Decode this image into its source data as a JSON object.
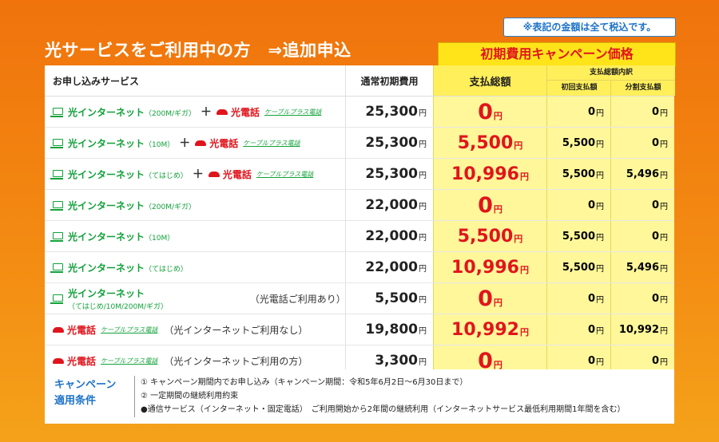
{
  "tax_note": "※表記の金額は全て税込です。",
  "title": "光サービスをご利用中の方　⇒追加申込",
  "campaign_banner": "初期費用キャンペーン価格",
  "headers": {
    "service": "お申し込みサービス",
    "standard": "通常初期費用",
    "total": "支払総額",
    "breakdown": "支払総額内訳",
    "first": "初回支払額",
    "installment": "分割支払額"
  },
  "yen": "円",
  "rows": [
    {
      "net": "光インターネット",
      "net_spec": "（200M/ギガ）",
      "plus": "＋",
      "tel": "光電話",
      "cable": "ケーブルプラス電話",
      "note": "",
      "standard": "25,300",
      "total": "0",
      "first": "0",
      "installment": "0"
    },
    {
      "net": "光インターネット",
      "net_spec": "（10M）",
      "plus": "＋",
      "tel": "光電話",
      "cable": "ケーブルプラス電話",
      "note": "",
      "standard": "25,300",
      "total": "5,500",
      "first": "5,500",
      "installment": "0"
    },
    {
      "net": "光インターネット",
      "net_spec": "（てはじめ）",
      "plus": "＋",
      "tel": "光電話",
      "cable": "ケーブルプラス電話",
      "note": "",
      "standard": "25,300",
      "total": "10,996",
      "first": "5,500",
      "installment": "5,496"
    },
    {
      "net": "光インターネット",
      "net_spec": "（200M/ギガ）",
      "plus": "",
      "tel": "",
      "cable": "",
      "note": "",
      "standard": "22,000",
      "total": "0",
      "first": "0",
      "installment": "0"
    },
    {
      "net": "光インターネット",
      "net_spec": "（10M）",
      "plus": "",
      "tel": "",
      "cable": "",
      "note": "",
      "standard": "22,000",
      "total": "5,500",
      "first": "5,500",
      "installment": "0"
    },
    {
      "net": "光インターネット",
      "net_spec": "（てはじめ）",
      "plus": "",
      "tel": "",
      "cable": "",
      "note": "",
      "standard": "22,000",
      "total": "10,996",
      "first": "5,500",
      "installment": "5,496"
    },
    {
      "net": "光インターネット",
      "net_spec": "（てはじめ/10M/200M/ギガ）",
      "plus": "",
      "tel": "",
      "cable": "",
      "note": "（光電話ご利用あり）",
      "standard": "5,500",
      "total": "0",
      "first": "0",
      "installment": "0"
    },
    {
      "net": "",
      "net_spec": "",
      "plus": "",
      "tel": "光電話",
      "cable": "ケーブルプラス電話",
      "note": "（光インターネットご利用なし）",
      "standard": "19,800",
      "total": "10,992",
      "first": "0",
      "installment": "10,992"
    },
    {
      "net": "",
      "net_spec": "",
      "plus": "",
      "tel": "光電話",
      "cable": "ケーブルプラス電話",
      "note": "（光インターネットご利用の方）",
      "standard": "3,300",
      "total": "0",
      "first": "0",
      "installment": "0"
    }
  ],
  "conditions": {
    "label": "キャンペーン\n適用条件",
    "lines": [
      "① キャンペーン期間内でお申し込み（キャンペーン期間：令和5年6月2日～6月30日まで）",
      "② 一定期間の継続利用約束",
      "●通信サービス（インターネット・固定電話）　ご利用開始から2年間の継続利用（インターネットサービス最低利用期間1年間を含む）"
    ]
  },
  "colors": {
    "accent_red": "#e0151c",
    "net_green": "#11a23a",
    "highlight_yellow": "#fff79a",
    "bg_orange": "#f0730c",
    "label_blue": "#1e73c8"
  }
}
